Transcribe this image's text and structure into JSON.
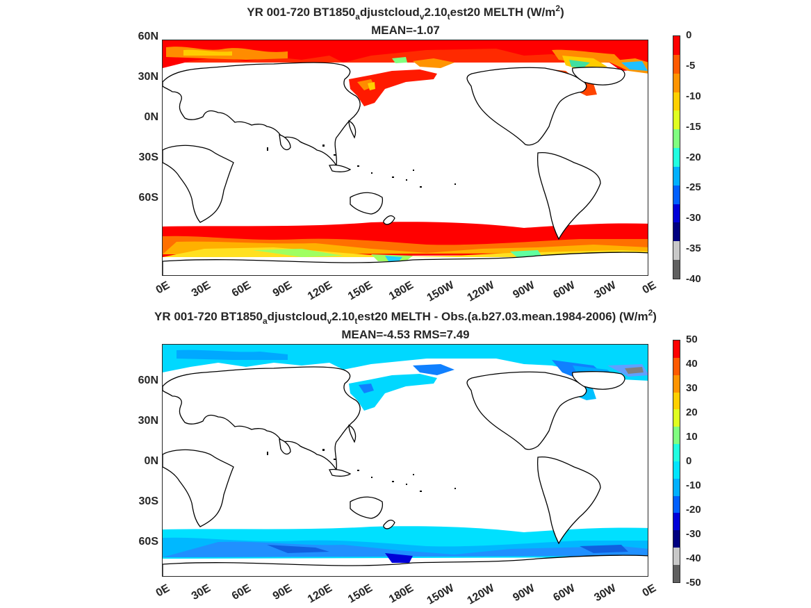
{
  "panel1": {
    "title_parts": [
      "YR 001-720 BT1850",
      "a",
      "djustcloud",
      "v",
      "2.10",
      "t",
      "est20  MELTH (W/m",
      "2",
      ")"
    ],
    "mean": "MEAN=-1.07",
    "colorbar_ticks": [
      "0",
      "-5",
      "-10",
      "-15",
      "-20",
      "-25",
      "-30",
      "-35",
      "-40"
    ],
    "colors": [
      "#ff0000",
      "#ff5a00",
      "#ff9400",
      "#ffd000",
      "#dfff20",
      "#80ff80",
      "#20ffe0",
      "#00b0ff",
      "#0060ff",
      "#0000d8",
      "#000080",
      "#c8c8c8",
      "#606060"
    ]
  },
  "panel2": {
    "title_parts": [
      "YR 001-720 BT1850",
      "a",
      "djustcloud",
      "v",
      "2.10",
      "t",
      "est20 MELTH - Obs.(a.b27.03.mean.1984-2006) (W/m",
      "2",
      ")"
    ],
    "mean": "MEAN=-4.53 RMS=7.49",
    "colorbar_ticks": [
      "50",
      "40",
      "30",
      "20",
      "10",
      "0",
      "-10",
      "-20",
      "-30",
      "-40",
      "-50"
    ],
    "colors": [
      "#ff0000",
      "#ff5a00",
      "#ff9400",
      "#ffd000",
      "#dfff20",
      "#80ff80",
      "#20ffe0",
      "#00e5ff",
      "#00b0ff",
      "#0060ff",
      "#0000d8",
      "#000080",
      "#c8c8c8",
      "#606060"
    ]
  },
  "axes": {
    "lat_labels": [
      "60N",
      "30N",
      "0N",
      "30S",
      "60S"
    ],
    "lon_labels": [
      "0E",
      "30E",
      "60E",
      "90E",
      "120E",
      "150E",
      "180E",
      "150W",
      "120W",
      "90W",
      "60W",
      "30W",
      "0E"
    ]
  }
}
